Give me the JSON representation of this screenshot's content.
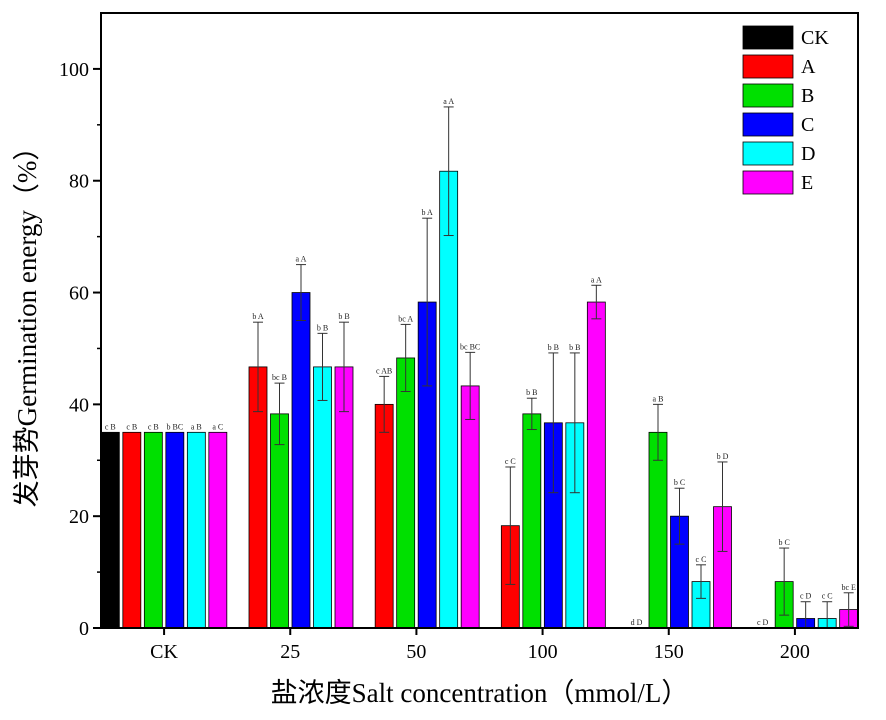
{
  "chart_data": {
    "type": "bar",
    "xlabel": "盐浓度Salt concentration（mmol/L）",
    "ylabel": "发芽势Germination energy（%）",
    "ylim": [
      0,
      110
    ],
    "yticks": [
      0,
      20,
      40,
      60,
      80,
      100
    ],
    "categories": [
      "CK",
      "25",
      "50",
      "100",
      "150",
      "200"
    ],
    "legend_position": "top-right",
    "series": [
      {
        "name": "CK",
        "color": "#000000",
        "values": [
          35,
          null,
          null,
          null,
          null,
          null
        ],
        "errors": [
          0,
          null,
          null,
          null,
          null,
          null
        ],
        "labels": [
          "c B",
          "",
          "",
          "",
          "",
          ""
        ]
      },
      {
        "name": "A",
        "color": "#ff0000",
        "values": [
          35,
          46.7,
          40,
          18.3,
          0,
          0
        ],
        "errors": [
          0,
          8,
          5,
          10.5,
          0,
          0
        ],
        "labels": [
          "c B",
          "b A",
          "c AB",
          "c C",
          "d D",
          "c D"
        ]
      },
      {
        "name": "B",
        "color": "#00e000",
        "values": [
          35,
          38.3,
          48.3,
          38.3,
          35,
          8.3
        ],
        "errors": [
          0,
          5.5,
          6,
          2.8,
          5,
          6
        ]
      },
      {
        "name": "C",
        "color": "#0000ff",
        "values": [
          35,
          60,
          58.3,
          36.7,
          20,
          1.7
        ],
        "errors": [
          0,
          5,
          15,
          12.5,
          5,
          3
        ],
        "labels": [
          "b BC",
          "a A",
          "b A",
          "b B",
          "b C",
          "c D"
        ]
      },
      {
        "name": "D",
        "color": "#00ffff",
        "values": [
          35,
          46.7,
          81.7,
          36.7,
          8.3,
          1.7
        ],
        "errors": [
          0,
          6,
          11.5,
          12.5,
          3,
          3
        ],
        "labels": [
          "a B",
          "b B",
          "a A",
          "b B",
          "c C",
          "c C"
        ]
      },
      {
        "name": "E",
        "color": "#ff00ff",
        "values": [
          35,
          46.7,
          43.3,
          58.3,
          21.7,
          3.3
        ],
        "errors": [
          0,
          8,
          6,
          3,
          8,
          3
        ],
        "labels": [
          "a C",
          "b B",
          "bc BC",
          "a A",
          "b D",
          "bc E"
        ]
      }
    ],
    "b_labels": [
      "c B",
      "bc B",
      "bc A",
      "b B",
      "a B",
      "b C"
    ]
  }
}
